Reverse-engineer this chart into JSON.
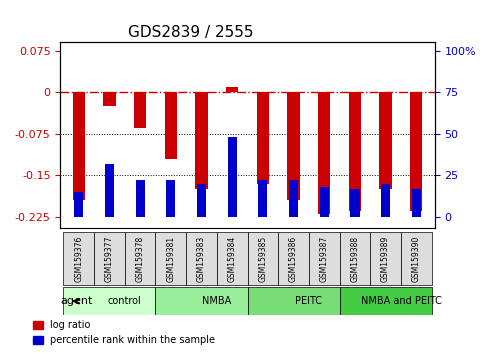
{
  "title": "GDS2839 / 2555",
  "samples": [
    "GSM159376",
    "GSM159377",
    "GSM159378",
    "GSM159381",
    "GSM159383",
    "GSM159384",
    "GSM159385",
    "GSM159386",
    "GSM159387",
    "GSM159388",
    "GSM159389",
    "GSM159390"
  ],
  "log_ratio": [
    -0.195,
    -0.025,
    -0.065,
    -0.12,
    -0.175,
    0.01,
    -0.165,
    -0.195,
    -0.22,
    -0.215,
    -0.175,
    -0.215
  ],
  "percentile_rank": [
    15,
    32,
    22,
    22,
    20,
    48,
    22,
    22,
    18,
    17,
    20,
    17
  ],
  "groups": [
    {
      "label": "control",
      "start": 0,
      "end": 3,
      "color": "#ccffcc"
    },
    {
      "label": "NMBA",
      "start": 3,
      "end": 6,
      "color": "#99ee99"
    },
    {
      "label": "PEITC",
      "start": 6,
      "end": 9,
      "color": "#77dd77"
    },
    {
      "label": "NMBA and PEITC",
      "start": 9,
      "end": 12,
      "color": "#44cc44"
    }
  ],
  "ylim": [
    -0.245,
    0.09
  ],
  "yticks_left": [
    0.075,
    0,
    -0.075,
    -0.15,
    -0.225
  ],
  "yticks_right": [
    100,
    75,
    50,
    25,
    0
  ],
  "bar_color_red": "#cc0000",
  "bar_color_blue": "#0000cc",
  "legend_red": "log ratio",
  "legend_blue": "percentile rank within the sample",
  "agent_label": "agent",
  "bar_width": 0.4,
  "blue_bar_width": 0.3
}
